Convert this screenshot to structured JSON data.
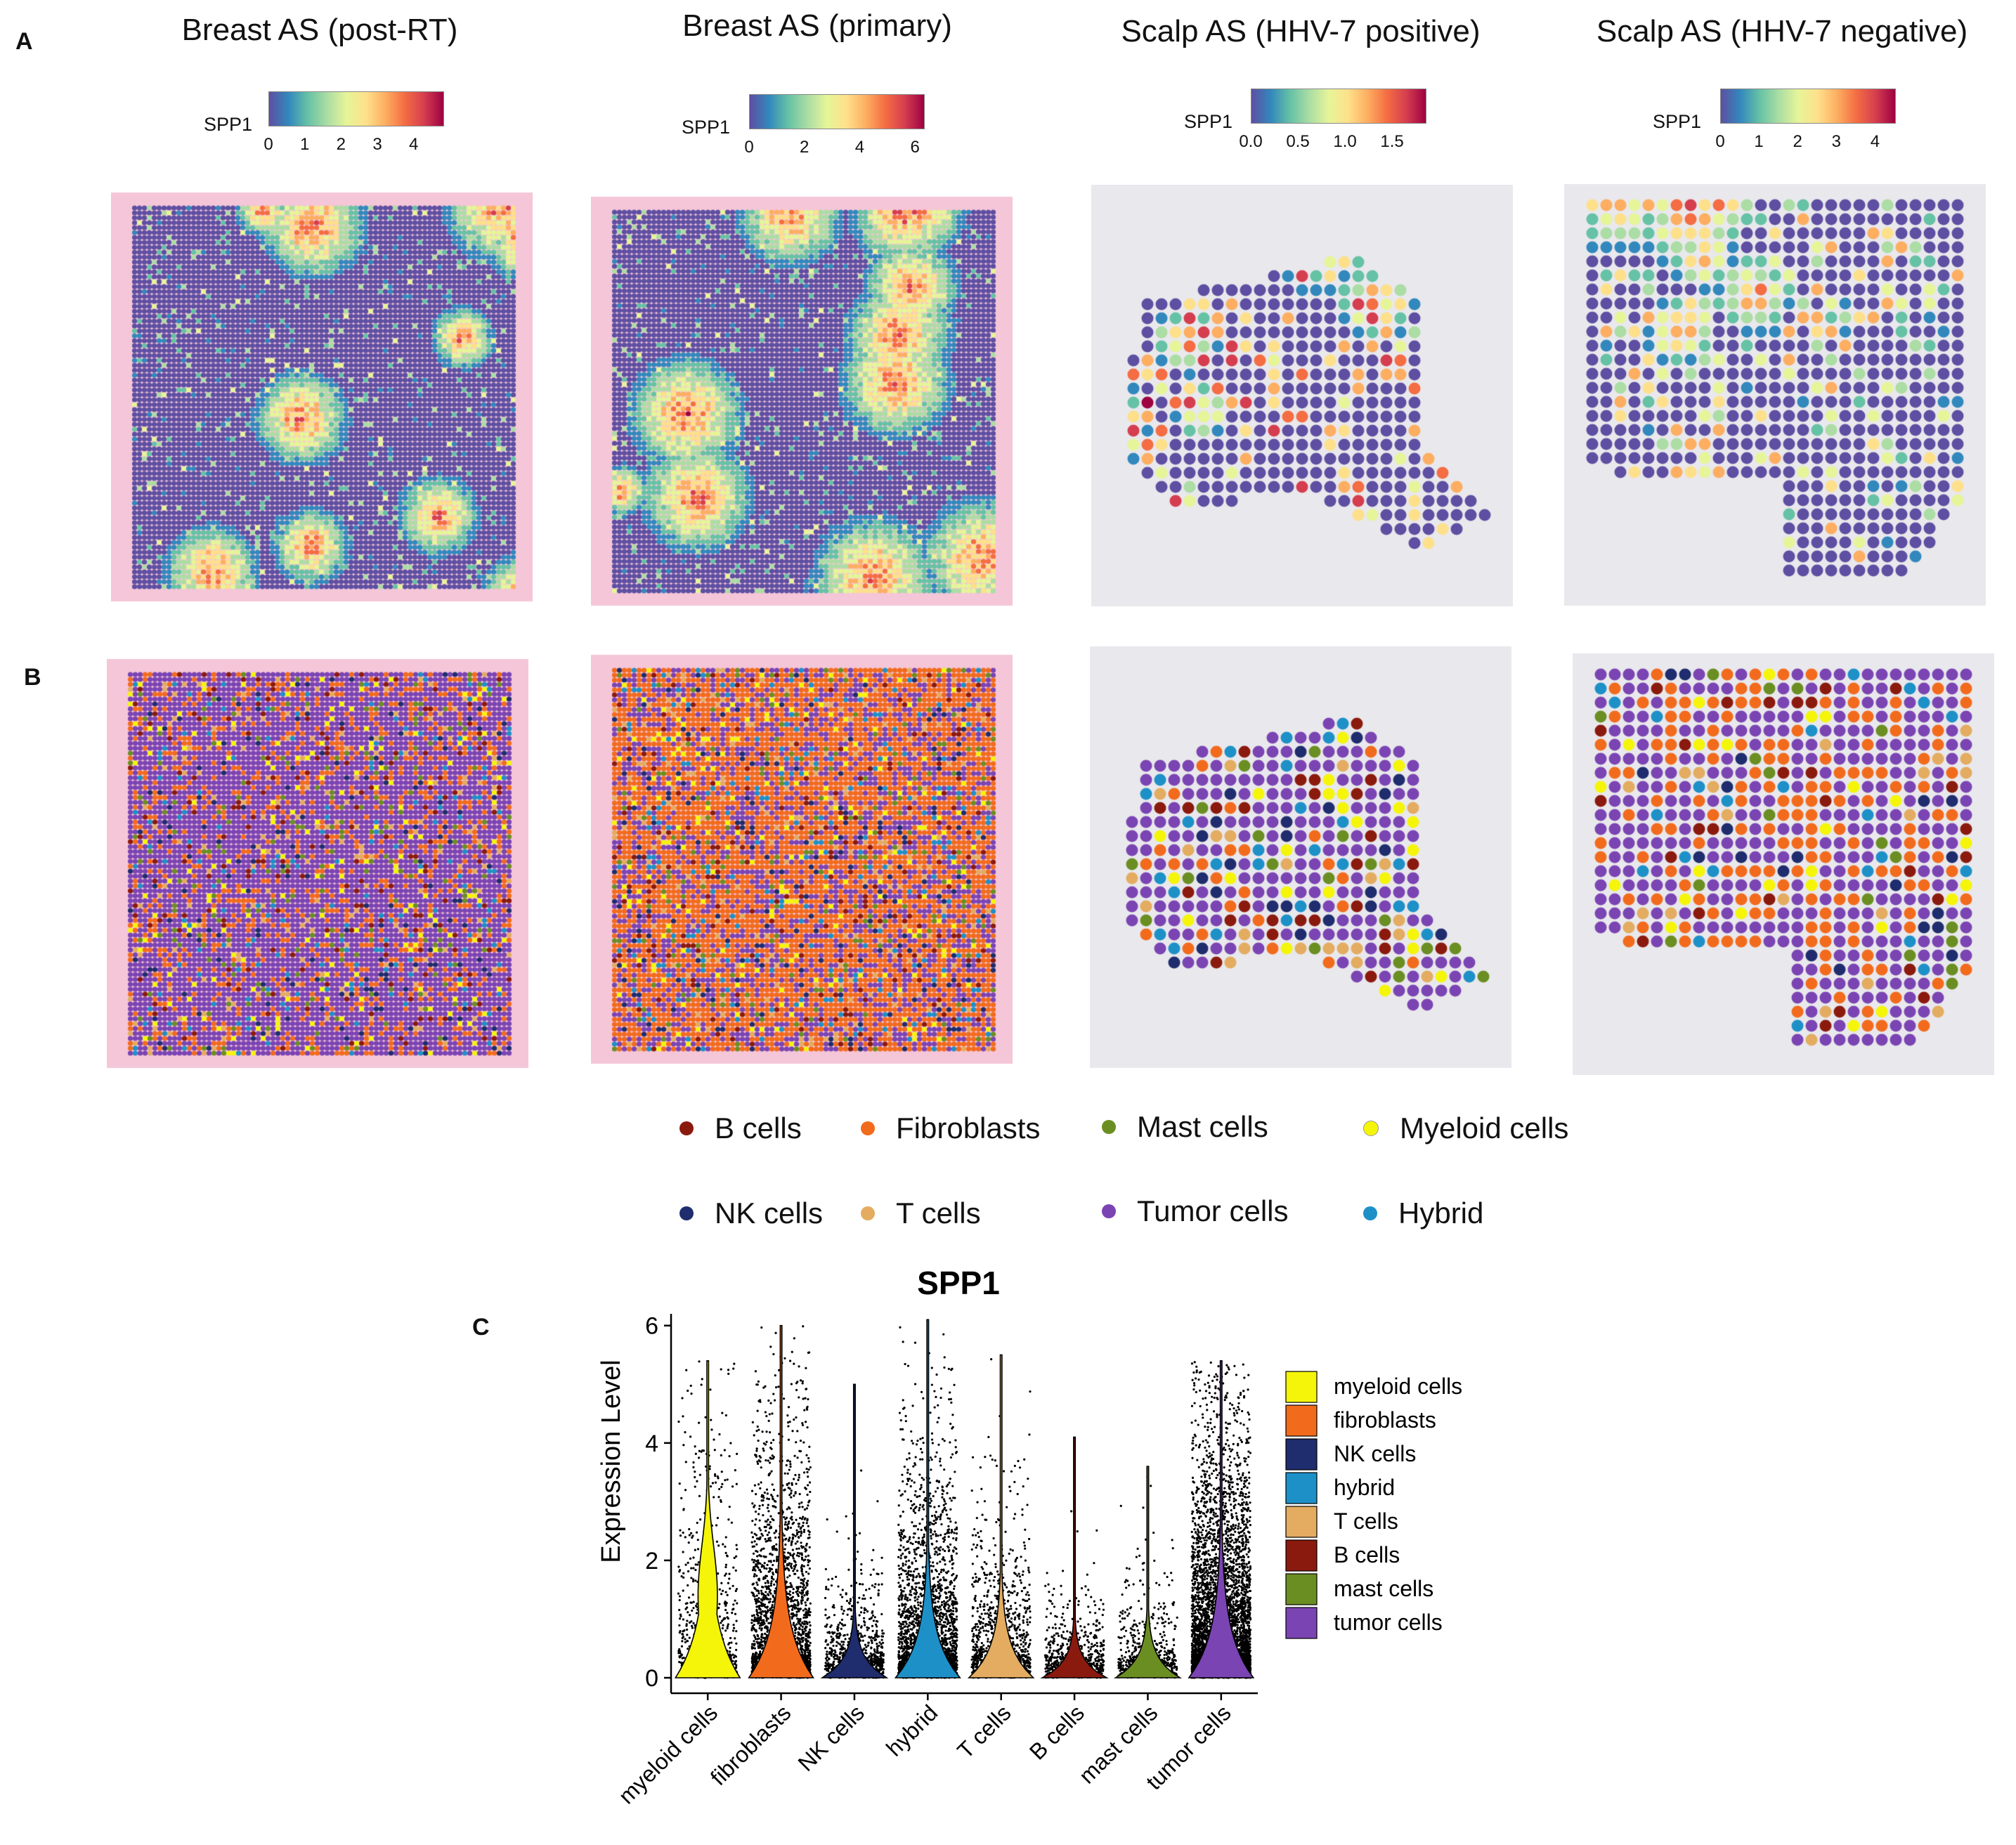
{
  "panels": {
    "a": "A",
    "b": "B",
    "c": "C"
  },
  "columns": [
    {
      "title": "Breast AS (post-RT)",
      "gene": "SPP1",
      "ticks": [
        "0",
        "1",
        "2",
        "3",
        "4"
      ],
      "tick_values": [
        0,
        1,
        2,
        3,
        4
      ],
      "max": 4.8
    },
    {
      "title": "Breast AS (primary)",
      "gene": "SPP1",
      "ticks": [
        "0",
        "2",
        "4",
        "6"
      ],
      "tick_values": [
        0,
        2,
        4,
        6
      ],
      "max": 6.3
    },
    {
      "title": "Scalp AS (HHV-7 positive)",
      "gene": "SPP1",
      "ticks": [
        "0.0",
        "0.5",
        "1.0",
        "1.5"
      ],
      "tick_values": [
        0,
        0.5,
        1.0,
        1.5
      ],
      "max": 1.85
    },
    {
      "title": "Scalp AS (HHV-7 negative)",
      "gene": "SPP1",
      "ticks": [
        "0",
        "1",
        "2",
        "3",
        "4"
      ],
      "tick_values": [
        0,
        1,
        2,
        3,
        4
      ],
      "max": 4.5
    }
  ],
  "colors": {
    "spectral": [
      "#5E4FA2",
      "#3288BD",
      "#66C2A5",
      "#ABDDA4",
      "#E6F598",
      "#FEE08B",
      "#FDAE61",
      "#F46D43",
      "#D53E4F",
      "#9E0142"
    ],
    "tissue_pink": "#F4C6D8",
    "tissue_gray": "#E9E8EC",
    "tissue_purple": "#8F79C0"
  },
  "cell_types": [
    {
      "label": "B cells",
      "color": "#8B1A0E"
    },
    {
      "label": "Fibroblasts",
      "color": "#F26B1D"
    },
    {
      "label": "Mast cells",
      "color": "#6B8E23"
    },
    {
      "label": "Myeloid cells",
      "color": "#F5F50A"
    },
    {
      "label": "NK cells",
      "color": "#1F2D6E"
    },
    {
      "label": "T cells",
      "color": "#E3AC60"
    },
    {
      "label": "Tumor cells",
      "color": "#7B44B3"
    },
    {
      "label": "Hybrid",
      "color": "#1E90C8"
    }
  ],
  "chart_data": {
    "type": "violin",
    "title": "SPP1",
    "xlabel": "",
    "ylabel": "Expression Level",
    "ylim": [
      0,
      6.2
    ],
    "yticks": [
      0,
      2,
      4,
      6
    ],
    "categories": [
      "myeloid cells",
      "fibroblasts",
      "NK cells",
      "hybrid",
      "T cells",
      "B cells",
      "mast cells",
      "tumor cells"
    ],
    "max_values": [
      5.4,
      6.0,
      5.0,
      6.1,
      5.5,
      4.1,
      3.6,
      5.4
    ],
    "median_values": [
      1.8,
      1.6,
      0.6,
      1.3,
      1.0,
      0.5,
      0.6,
      1.5
    ],
    "colors": [
      "#F5F50A",
      "#F26B1D",
      "#1F2D6E",
      "#1E90C8",
      "#E3AC60",
      "#8B1A0E",
      "#6B8E23",
      "#7B44B3"
    ],
    "legend": [
      "myeloid cells",
      "fibroblasts",
      "NK cells",
      "hybrid",
      "T cells",
      "B cells",
      "mast cells",
      "tumor cells"
    ],
    "legend_position": "right"
  }
}
